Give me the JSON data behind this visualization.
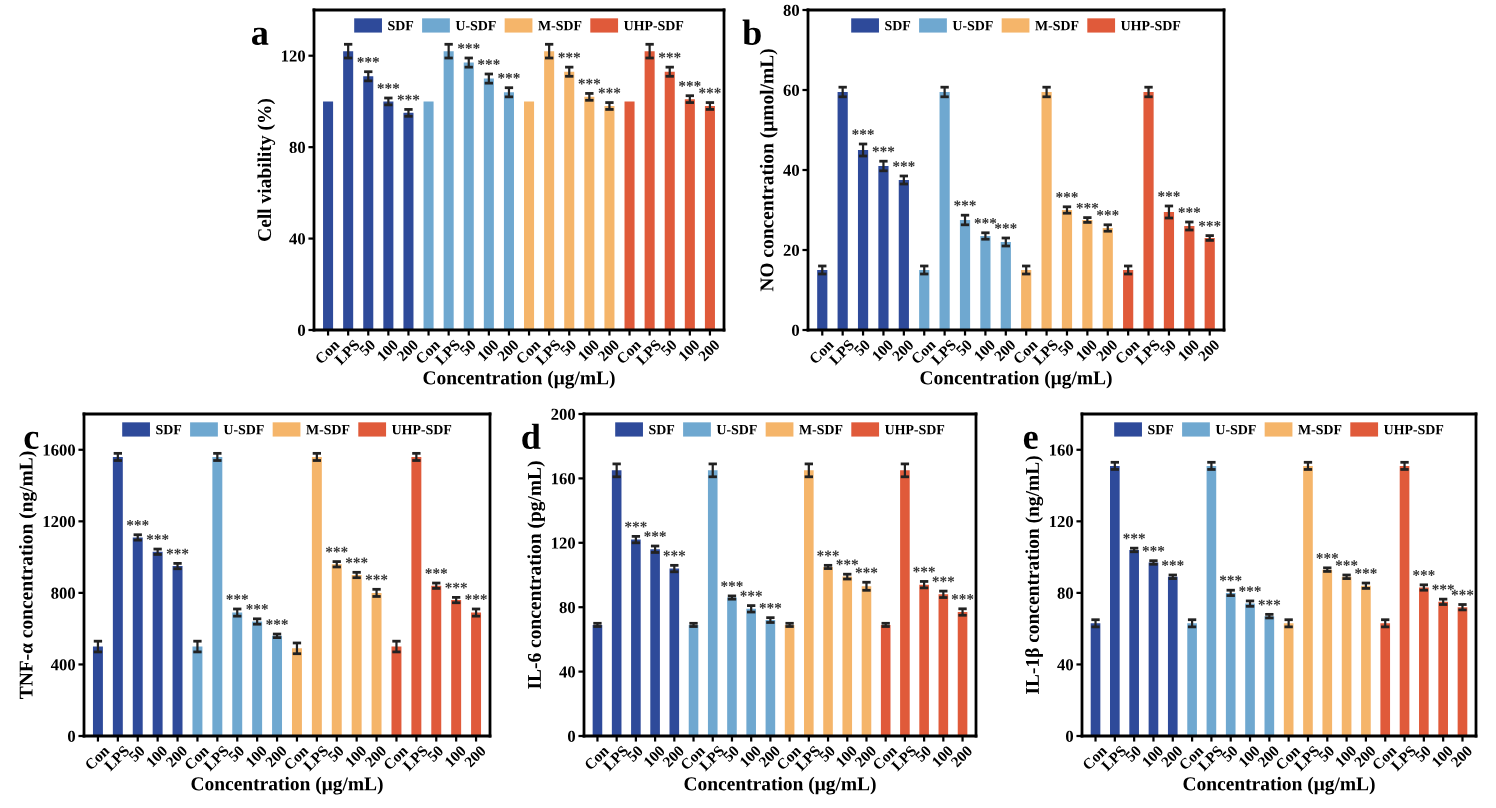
{
  "chart_data": [
    {
      "type": "bar",
      "title": "a",
      "xlabel": "Concentration (μg/mL)",
      "ylabel": "Cell viability (%)",
      "legend": "top",
      "ylim": [
        0,
        140
      ],
      "yticks": [
        0,
        40,
        80,
        120
      ],
      "categories": [
        "Con",
        "LPS",
        "50",
        "100",
        "200",
        "Con",
        "LPS",
        "50",
        "100",
        "200",
        "Con",
        "LPS",
        "50",
        "100",
        "200",
        "Con",
        "LPS",
        "50",
        "100",
        "200"
      ],
      "series": [
        {
          "name": "SDF",
          "color": "#2e4a9a",
          "values": [
            100,
            122,
            111,
            100,
            95,
            null,
            null,
            null,
            null,
            null,
            null,
            null,
            null,
            null,
            null,
            null,
            null,
            null,
            null,
            null
          ],
          "errors": [
            null,
            3,
            2,
            1.5,
            1.5,
            null,
            null,
            null,
            null,
            null,
            null,
            null,
            null,
            null,
            null,
            null,
            null,
            null,
            null,
            null
          ],
          "value_labels": [
            null,
            null,
            "***",
            "***",
            "***",
            null,
            null,
            null,
            null,
            null,
            null,
            null,
            null,
            null,
            null,
            null,
            null,
            null,
            null,
            null
          ]
        },
        {
          "name": "U-SDF",
          "color": "#6fa8d0",
          "values": [
            null,
            null,
            null,
            null,
            null,
            100,
            122,
            117,
            110,
            104,
            null,
            null,
            null,
            null,
            null,
            null,
            null,
            null,
            null,
            null
          ],
          "errors": [
            null,
            null,
            null,
            null,
            null,
            null,
            3,
            2,
            2,
            2,
            null,
            null,
            null,
            null,
            null,
            null,
            null,
            null,
            null,
            null
          ],
          "value_labels": [
            null,
            null,
            null,
            null,
            null,
            null,
            null,
            "***",
            "***",
            "***",
            null,
            null,
            null,
            null,
            null,
            null,
            null,
            null,
            null,
            null
          ]
        },
        {
          "name": "M-SDF",
          "color": "#f5b56a",
          "values": [
            null,
            null,
            null,
            null,
            null,
            null,
            null,
            null,
            null,
            null,
            100,
            122,
            113,
            102,
            98,
            null,
            null,
            null,
            null,
            null
          ],
          "errors": [
            null,
            null,
            null,
            null,
            null,
            null,
            null,
            null,
            null,
            null,
            null,
            3,
            2,
            1.5,
            1.5,
            null,
            null,
            null,
            null,
            null
          ],
          "value_labels": [
            null,
            null,
            null,
            null,
            null,
            null,
            null,
            null,
            null,
            null,
            null,
            null,
            "***",
            "***",
            "***",
            null,
            null,
            null,
            null,
            null
          ]
        },
        {
          "name": "UHP-SDF",
          "color": "#e05a3a",
          "values": [
            null,
            null,
            null,
            null,
            null,
            null,
            null,
            null,
            null,
            null,
            null,
            null,
            null,
            null,
            null,
            100,
            122,
            113,
            101,
            98
          ],
          "errors": [
            null,
            null,
            null,
            null,
            null,
            null,
            null,
            null,
            null,
            null,
            null,
            null,
            null,
            null,
            null,
            null,
            3,
            2,
            1.5,
            1.5
          ],
          "value_labels": [
            null,
            null,
            null,
            null,
            null,
            null,
            null,
            null,
            null,
            null,
            null,
            null,
            null,
            null,
            null,
            null,
            null,
            "***",
            "***",
            "***"
          ]
        }
      ]
    },
    {
      "type": "bar",
      "title": "b",
      "xlabel": "Concentration (μg/mL)",
      "ylabel": "NO concentration (μmol/mL)",
      "legend": "top",
      "ylim": [
        0,
        80
      ],
      "yticks": [
        0,
        20,
        40,
        60,
        80
      ],
      "categories": [
        "Con",
        "LPS",
        "50",
        "100",
        "200",
        "Con",
        "LPS",
        "50",
        "100",
        "200",
        "Con",
        "LPS",
        "50",
        "100",
        "200",
        "Con",
        "LPS",
        "50",
        "100",
        "200"
      ],
      "series": [
        {
          "name": "SDF",
          "color": "#2e4a9a",
          "values": [
            15,
            59.5,
            45,
            41,
            37.5,
            null,
            null,
            null,
            null,
            null,
            null,
            null,
            null,
            null,
            null,
            null,
            null,
            null,
            null,
            null
          ],
          "errors": [
            1,
            1.2,
            1.5,
            1.2,
            1,
            null,
            null,
            null,
            null,
            null,
            null,
            null,
            null,
            null,
            null,
            null,
            null,
            null,
            null,
            null
          ],
          "value_labels": [
            null,
            null,
            "***",
            "***",
            "***",
            null,
            null,
            null,
            null,
            null,
            null,
            null,
            null,
            null,
            null,
            null,
            null,
            null,
            null,
            null
          ]
        },
        {
          "name": "U-SDF",
          "color": "#6fa8d0",
          "values": [
            null,
            null,
            null,
            null,
            null,
            15,
            59.5,
            27.5,
            23.5,
            22,
            null,
            null,
            null,
            null,
            null,
            null,
            null,
            null,
            null,
            null
          ],
          "errors": [
            null,
            null,
            null,
            null,
            null,
            1,
            1.2,
            1.2,
            0.8,
            1,
            null,
            null,
            null,
            null,
            null,
            null,
            null,
            null,
            null,
            null
          ],
          "value_labels": [
            null,
            null,
            null,
            null,
            null,
            null,
            null,
            "***",
            "***",
            "***",
            null,
            null,
            null,
            null,
            null,
            null,
            null,
            null,
            null,
            null
          ]
        },
        {
          "name": "M-SDF",
          "color": "#f5b56a",
          "values": [
            null,
            null,
            null,
            null,
            null,
            null,
            null,
            null,
            null,
            null,
            15,
            59.5,
            30,
            27.5,
            25.5,
            null,
            null,
            null,
            null,
            null
          ],
          "errors": [
            null,
            null,
            null,
            null,
            null,
            null,
            null,
            null,
            null,
            null,
            1,
            1.2,
            0.8,
            0.6,
            0.8,
            null,
            null,
            null,
            null,
            null
          ],
          "value_labels": [
            null,
            null,
            null,
            null,
            null,
            null,
            null,
            null,
            null,
            null,
            null,
            null,
            "***",
            "***",
            "***",
            null,
            null,
            null,
            null,
            null
          ]
        },
        {
          "name": "UHP-SDF",
          "color": "#e05a3a",
          "values": [
            null,
            null,
            null,
            null,
            null,
            null,
            null,
            null,
            null,
            null,
            null,
            null,
            null,
            null,
            null,
            15,
            59.5,
            29.5,
            26,
            23
          ],
          "errors": [
            null,
            null,
            null,
            null,
            null,
            null,
            null,
            null,
            null,
            null,
            null,
            null,
            null,
            null,
            null,
            1,
            1.2,
            1.5,
            1,
            0.6
          ],
          "value_labels": [
            null,
            null,
            null,
            null,
            null,
            null,
            null,
            null,
            null,
            null,
            null,
            null,
            null,
            null,
            null,
            null,
            null,
            "***",
            "***",
            "***"
          ]
        }
      ]
    },
    {
      "type": "bar",
      "title": "c",
      "xlabel": "Concentration (μg/mL)",
      "ylabel": "TNF-α concentration (ng/mL)",
      "legend": "top",
      "ylim": [
        0,
        1800
      ],
      "yticks": [
        0,
        400,
        800,
        1200,
        1600
      ],
      "categories": [
        "Con",
        "LPS",
        "50",
        "100",
        "200",
        "Con",
        "LPS",
        "50",
        "100",
        "200",
        "Con",
        "LPS",
        "50",
        "100",
        "200",
        "Con",
        "LPS",
        "50",
        "100",
        "200"
      ],
      "series": [
        {
          "name": "SDF",
          "color": "#2e4a9a",
          "values": [
            500,
            1560,
            1110,
            1030,
            950,
            null,
            null,
            null,
            null,
            null,
            null,
            null,
            null,
            null,
            null,
            null,
            null,
            null,
            null,
            null
          ],
          "errors": [
            30,
            20,
            15,
            15,
            15,
            null,
            null,
            null,
            null,
            null,
            null,
            null,
            null,
            null,
            null,
            null,
            null,
            null,
            null,
            null
          ],
          "value_labels": [
            null,
            null,
            "***",
            "***",
            "***",
            null,
            null,
            null,
            null,
            null,
            null,
            null,
            null,
            null,
            null,
            null,
            null,
            null,
            null,
            null
          ]
        },
        {
          "name": "U-SDF",
          "color": "#6fa8d0",
          "values": [
            null,
            null,
            null,
            null,
            null,
            500,
            1560,
            690,
            640,
            560,
            null,
            null,
            null,
            null,
            null,
            null,
            null,
            null,
            null,
            null
          ],
          "errors": [
            null,
            null,
            null,
            null,
            null,
            30,
            20,
            20,
            15,
            10,
            null,
            null,
            null,
            null,
            null,
            null,
            null,
            null,
            null,
            null
          ],
          "value_labels": [
            null,
            null,
            null,
            null,
            null,
            null,
            null,
            "***",
            "***",
            "***",
            null,
            null,
            null,
            null,
            null,
            null,
            null,
            null,
            null,
            null
          ]
        },
        {
          "name": "M-SDF",
          "color": "#f5b56a",
          "values": [
            null,
            null,
            null,
            null,
            null,
            null,
            null,
            null,
            null,
            null,
            490,
            1560,
            960,
            900,
            800,
            null,
            null,
            null,
            null,
            null
          ],
          "errors": [
            null,
            null,
            null,
            null,
            null,
            null,
            null,
            null,
            null,
            null,
            30,
            20,
            15,
            15,
            20,
            null,
            null,
            null,
            null,
            null
          ],
          "value_labels": [
            null,
            null,
            null,
            null,
            null,
            null,
            null,
            null,
            null,
            null,
            null,
            null,
            "***",
            "***",
            "***",
            null,
            null,
            null,
            null,
            null
          ]
        },
        {
          "name": "UHP-SDF",
          "color": "#e05a3a",
          "values": [
            null,
            null,
            null,
            null,
            null,
            null,
            null,
            null,
            null,
            null,
            null,
            null,
            null,
            null,
            null,
            500,
            1560,
            840,
            760,
            690
          ],
          "errors": [
            null,
            null,
            null,
            null,
            null,
            null,
            null,
            null,
            null,
            null,
            null,
            null,
            null,
            null,
            null,
            30,
            20,
            15,
            15,
            20
          ],
          "value_labels": [
            null,
            null,
            null,
            null,
            null,
            null,
            null,
            null,
            null,
            null,
            null,
            null,
            null,
            null,
            null,
            null,
            null,
            "***",
            "***",
            "***"
          ]
        }
      ]
    },
    {
      "type": "bar",
      "title": "d",
      "xlabel": "Concentration (μg/mL)",
      "ylabel": "IL-6 concentration (pg/mL)",
      "legend": "top",
      "ylim": [
        0,
        200
      ],
      "yticks": [
        0,
        40,
        80,
        120,
        160,
        200
      ],
      "categories": [
        "Con",
        "LPS",
        "50",
        "100",
        "200",
        "Con",
        "LPS",
        "50",
        "100",
        "200",
        "Con",
        "LPS",
        "50",
        "100",
        "200",
        "Con",
        "LPS",
        "50",
        "100",
        "200"
      ],
      "series": [
        {
          "name": "SDF",
          "color": "#2e4a9a",
          "values": [
            69,
            165,
            122,
            116,
            104,
            null,
            null,
            null,
            null,
            null,
            null,
            null,
            null,
            null,
            null,
            null,
            null,
            null,
            null,
            null
          ],
          "errors": [
            1,
            4,
            2,
            2,
            2,
            null,
            null,
            null,
            null,
            null,
            null,
            null,
            null,
            null,
            null,
            null,
            null,
            null,
            null,
            null
          ],
          "value_labels": [
            null,
            null,
            "***",
            "***",
            "***",
            null,
            null,
            null,
            null,
            null,
            null,
            null,
            null,
            null,
            null,
            null,
            null,
            null,
            null,
            null
          ]
        },
        {
          "name": "U-SDF",
          "color": "#6fa8d0",
          "values": [
            null,
            null,
            null,
            null,
            null,
            69,
            165,
            86,
            79,
            72,
            null,
            null,
            null,
            null,
            null,
            null,
            null,
            null,
            null,
            null
          ],
          "errors": [
            null,
            null,
            null,
            null,
            null,
            1,
            4,
            1,
            2,
            1.5,
            null,
            null,
            null,
            null,
            null,
            null,
            null,
            null,
            null,
            null
          ],
          "value_labels": [
            null,
            null,
            null,
            null,
            null,
            null,
            null,
            "***",
            "***",
            "***",
            null,
            null,
            null,
            null,
            null,
            null,
            null,
            null,
            null,
            null
          ]
        },
        {
          "name": "M-SDF",
          "color": "#f5b56a",
          "values": [
            null,
            null,
            null,
            null,
            null,
            null,
            null,
            null,
            null,
            null,
            69,
            165,
            105,
            99,
            93,
            null,
            null,
            null,
            null,
            null
          ],
          "errors": [
            null,
            null,
            null,
            null,
            null,
            null,
            null,
            null,
            null,
            null,
            1,
            4,
            1,
            1.5,
            2.5,
            null,
            null,
            null,
            null,
            null
          ],
          "value_labels": [
            null,
            null,
            null,
            null,
            null,
            null,
            null,
            null,
            null,
            null,
            null,
            null,
            "***",
            "***",
            "***",
            null,
            null,
            null,
            null,
            null
          ]
        },
        {
          "name": "UHP-SDF",
          "color": "#e05a3a",
          "values": [
            null,
            null,
            null,
            null,
            null,
            null,
            null,
            null,
            null,
            null,
            null,
            null,
            null,
            null,
            null,
            69,
            165,
            94,
            88,
            77
          ],
          "errors": [
            null,
            null,
            null,
            null,
            null,
            null,
            null,
            null,
            null,
            null,
            null,
            null,
            null,
            null,
            null,
            1,
            4,
            2,
            2,
            2
          ],
          "value_labels": [
            null,
            null,
            null,
            null,
            null,
            null,
            null,
            null,
            null,
            null,
            null,
            null,
            null,
            null,
            null,
            null,
            null,
            "***",
            "***",
            "***"
          ]
        }
      ]
    },
    {
      "type": "bar",
      "title": "e",
      "xlabel": "Concentration (μg/mL)",
      "ylabel": "IL-1β concentration (ng/mL)",
      "legend": "top",
      "ylim": [
        0,
        180
      ],
      "yticks": [
        0,
        40,
        80,
        120,
        160
      ],
      "categories": [
        "Con",
        "LPS",
        "50",
        "100",
        "200",
        "Con",
        "LPS",
        "50",
        "100",
        "200",
        "Con",
        "LPS",
        "50",
        "100",
        "200",
        "Con",
        "LPS",
        "50",
        "100",
        "200"
      ],
      "series": [
        {
          "name": "SDF",
          "color": "#2e4a9a",
          "values": [
            63,
            151,
            104,
            97,
            89,
            null,
            null,
            null,
            null,
            null,
            null,
            null,
            null,
            null,
            null,
            null,
            null,
            null,
            null,
            null
          ],
          "errors": [
            2,
            2,
            1,
            1,
            1,
            null,
            null,
            null,
            null,
            null,
            null,
            null,
            null,
            null,
            null,
            null,
            null,
            null,
            null,
            null
          ],
          "value_labels": [
            null,
            null,
            "***",
            "***",
            "***",
            null,
            null,
            null,
            null,
            null,
            null,
            null,
            null,
            null,
            null,
            null,
            null,
            null,
            null,
            null
          ]
        },
        {
          "name": "U-SDF",
          "color": "#6fa8d0",
          "values": [
            null,
            null,
            null,
            null,
            null,
            63,
            151,
            80,
            74,
            67,
            null,
            null,
            null,
            null,
            null,
            null,
            null,
            null,
            null,
            null
          ],
          "errors": [
            null,
            null,
            null,
            null,
            null,
            2,
            2,
            1.5,
            1.5,
            1,
            null,
            null,
            null,
            null,
            null,
            null,
            null,
            null,
            null,
            null
          ],
          "value_labels": [
            null,
            null,
            null,
            null,
            null,
            null,
            null,
            "***",
            "***",
            "***",
            null,
            null,
            null,
            null,
            null,
            null,
            null,
            null,
            null,
            null
          ]
        },
        {
          "name": "M-SDF",
          "color": "#f5b56a",
          "values": [
            null,
            null,
            null,
            null,
            null,
            null,
            null,
            null,
            null,
            null,
            63,
            151,
            93,
            89,
            84,
            null,
            null,
            null,
            null,
            null
          ],
          "errors": [
            null,
            null,
            null,
            null,
            null,
            null,
            null,
            null,
            null,
            null,
            2,
            2,
            1,
            1,
            1.5,
            null,
            null,
            null,
            null,
            null
          ],
          "value_labels": [
            null,
            null,
            null,
            null,
            null,
            null,
            null,
            null,
            null,
            null,
            null,
            null,
            "***",
            "***",
            "***",
            null,
            null,
            null,
            null,
            null
          ]
        },
        {
          "name": "UHP-SDF",
          "color": "#e05a3a",
          "values": [
            null,
            null,
            null,
            null,
            null,
            null,
            null,
            null,
            null,
            null,
            null,
            null,
            null,
            null,
            null,
            63,
            151,
            83,
            75,
            72
          ],
          "errors": [
            null,
            null,
            null,
            null,
            null,
            null,
            null,
            null,
            null,
            null,
            null,
            null,
            null,
            null,
            null,
            2,
            2,
            1.5,
            1.5,
            1.5
          ],
          "value_labels": [
            null,
            null,
            null,
            null,
            null,
            null,
            null,
            null,
            null,
            null,
            null,
            null,
            null,
            null,
            null,
            null,
            null,
            "***",
            "***",
            "***"
          ]
        }
      ]
    }
  ]
}
